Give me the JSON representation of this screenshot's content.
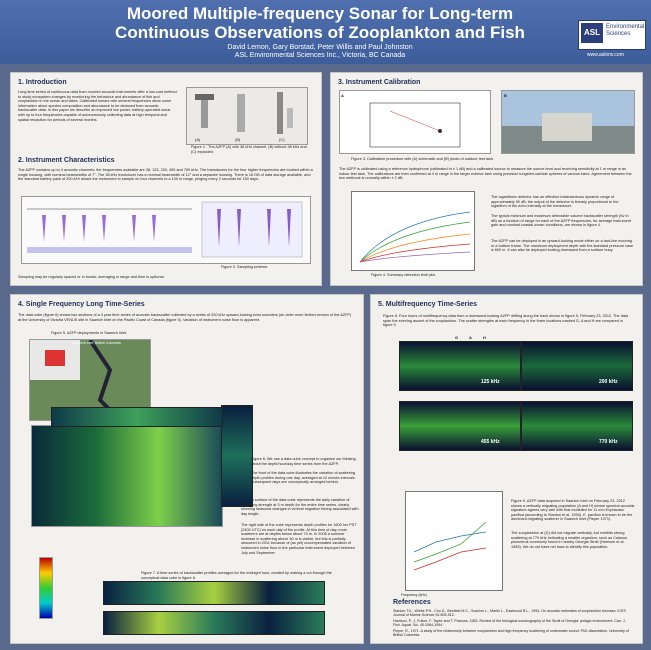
{
  "header": {
    "title_line1": "Moored Multiple-frequency Sonar for Long-term",
    "title_line2": "Continuous Observations of Zooplankton and Fish",
    "authors": "David Lemon, Gary Borstad, Peter Willis and Paul Johnston",
    "affiliation": "ASL Environmental Sciences Inc., Victoria, BC Canada",
    "logo_mark": "ASL",
    "logo_name1": "Environmental",
    "logo_name2": "Sciences",
    "url": "www.aslenv.com"
  },
  "sec1": {
    "title": "1. Introduction",
    "text": "Long time series of continuous data from moored acoustic instruments offer a low-cost method to study ecosystem changes by monitoring the behaviour and abundance of fish and zooplankton in the ocean and lakes. Calibrated sonars with several frequencies allow some information about species composition and abundance to be deduced from acoustic backscatter data. In this paper we describe an improved low power, battery-operated sonar with up to four frequencies capable of autonomously collecting data at high temporal and spatial resolution for periods of several months.",
    "fig1_caption": "Figure 1 . The AZFP (A) with 38 kHz channel, (B) without 38 kHz and (C) exploded.",
    "fig1_labels": [
      "(A)",
      "(B)",
      "(C)"
    ]
  },
  "sec2": {
    "title": "2. Instrument Characteristics",
    "text": "The AZFP contains up to 4 acoustic channels; the frequencies available are 38, 125, 200, 455 and 769 kHz. The transducers for the four higher frequencies are located within a single housing, with nominal beamwidths of 7°. The 38 kHz transducer has a nominal beamwidth of 12° and a separate housing. There is 16 GB of data storage available, and the standard battery pack of 200 AHr allows the instrument to sample on four channels to a 100 m range, pinging every 2 seconds for 150 days.",
    "fig2_caption": "Figure 2. Sampling scheme.",
    "footer": "Sampling may be regularly spaced or in bursts; averaging in range and time is optional."
  },
  "sec3": {
    "title": "3. Instrument Calibration",
    "fig3_caption": "Figure 3. Calibration procedure with (A) schematic and (B) photo of outdoor test tank.",
    "fig3_labels": [
      "A",
      "B"
    ],
    "text": "The AZFP is calibrated using a reference hydrophone (calibrated to ± 1 dB) and a calibrated source to measure the source level and receiving sensitivity at 1 m range in an indoor test tank. The calibrations are then confirmed at 4 m range in the larger exterior tank using precision tungsten-carbide spheres of various sizes. Agreement between the two methods is normally within ± 2 dB.",
    "text2": "The logarithmic detector has an effective instantaneous dynamic range of approximately 90 dB; the output of the detector is linearly proportional to the logarithm of the echo intensity at the transducer.",
    "text3": "The typical minimum and maximum detectable volume backscatter strength (Sv in dB) as a function of range for each of the AZFP frequencies, for average instrument gain and nominal coastal ocean conditions, are shown in figure 4.",
    "text4": "The AZFP can be deployed in an upward-looking mode either on a taut-line mooring or a bottom frame. The maximum deployment depth with the standard pressure case is 600 m. It can also be deployed looking downward from a surface buoy.",
    "fig4_caption": "Figure 4. Summary detection limit plot."
  },
  "sec4": {
    "title": "4. Single Frequency Long Time-Series",
    "text": "The data cube (figure 6) shows two sections of a 4 year time series of acoustic backscatter collected by a series of 200 kHz upward-looking echo sounders (an older more limited version of the AZFP) at the University of Victoria VENUS site in Saanich Inlet on the Pacific Coast of Canada (figure 5). Variation of instrument noise floor is apparent.",
    "fig5_caption": "Figure 5. AZFP deployments in Saanich Inlet.",
    "fig6_caption": "Figure 6. We use a data cube concept to organize our thinking about the depth/hour/day time series from the AZFP.",
    "text_front": "The front of the data cube illustrates the variation of scattering depth profiles during one day, averaged at 10 minute intervals. Subsequent days are conceptually arranged behind.",
    "text_top": "The top surface of the data cube represents the daily variation of scattering strength at 3 m depth for the entire time series, clearly showing seasonal changes in vertical migration timing associated with day length.",
    "text_side": "The right side of the cube represents depth profiles for 1600 hrs PST (2400 UTC) on each day of the profile. At this time of day, most scatterers are at depths below about 70 m. In 2008 a summer increase in scattering above 30 m is visible, but this is partially obscured in 2011 because of (as yet) uncompensated variation of instrument noise floor in the particular instrument deployed between July and September.",
    "fig7_caption": "Figure 7. A time series of backscatter profiles averaged for the midnight hour, created by making a cut through the conceptual data cube in figure 6.",
    "map_label": "Saanich Inlet, British Columbia"
  },
  "sec5": {
    "title": "5. Multifrequency Time-Series",
    "fig8_caption": "Figure 8. Four hours of multifrequency data from a downward-looking AZFP drifting along the track shown in figure 5, February 23, 2012. The data span the evening ascent of the zooplankton. The scatter strengths at each frequency in the three locations marked G, A and H are compared in figure 9.",
    "freqs": [
      "125 kHz",
      "200 kHz",
      "455 kHz",
      "770 kHz"
    ],
    "markers": [
      "G",
      "A",
      "H"
    ],
    "fig9_caption": "Figure 9. AZFP data acquired in Saanich Inlet on February 23, 2012 shows a vertically migrating population (A and H) whose spectral acoustic signature agrees very well with that modelled for 11 mm Euphausia pacifica (according to Stanton et al. 1994). E. pacifica is known to be the dominant migrating scatterer in Saanich Inlet (Pieper 1971).",
    "fig9_text2": "The zooplankton at (G) did not migrate vertically, but exhibits strong scattering at 770 kHz indicating a smaller organism, such as Calanus plumchrus commonly found in nearby Georgia Strait (Harrison et al. 1983). We do not have net tows to identify this population.",
    "legend": [
      "G night",
      "Modeled 11 mm (E. pacifica) Depth",
      "A mean",
      "Modeled 7 mm (E. pacifica)",
      "H mean",
      "Modeled 3.5 mm (C. plumchrus)"
    ],
    "xlabel": "Frequency (kHz)",
    "ylabel": "Volume Backscatter (dB)"
  },
  "references": {
    "title": "References",
    "items": [
      "Stanton T.K., Wiebe P.H., Chu D., Benfield M.C., Scanlon L., Martin L., Eastwood R.L., 1994. On acoustic estimates of zooplankton biomass. ICES Journal of Marine Science 51:505-512.",
      "Harrison, P., J. Fulton, F. Taylor and T. Parsons, 1983. Review of the biological oceanography of the Strait of Georgia: pelagic environment. Can. J. Fish. Aquat. Sci. 40:1064-1094.",
      "Pieper, R., 1971. A study of the relationship between zooplankton and high frequency scattering of underwater sound. PhD dissertation, University of British Columbia."
    ]
  }
}
